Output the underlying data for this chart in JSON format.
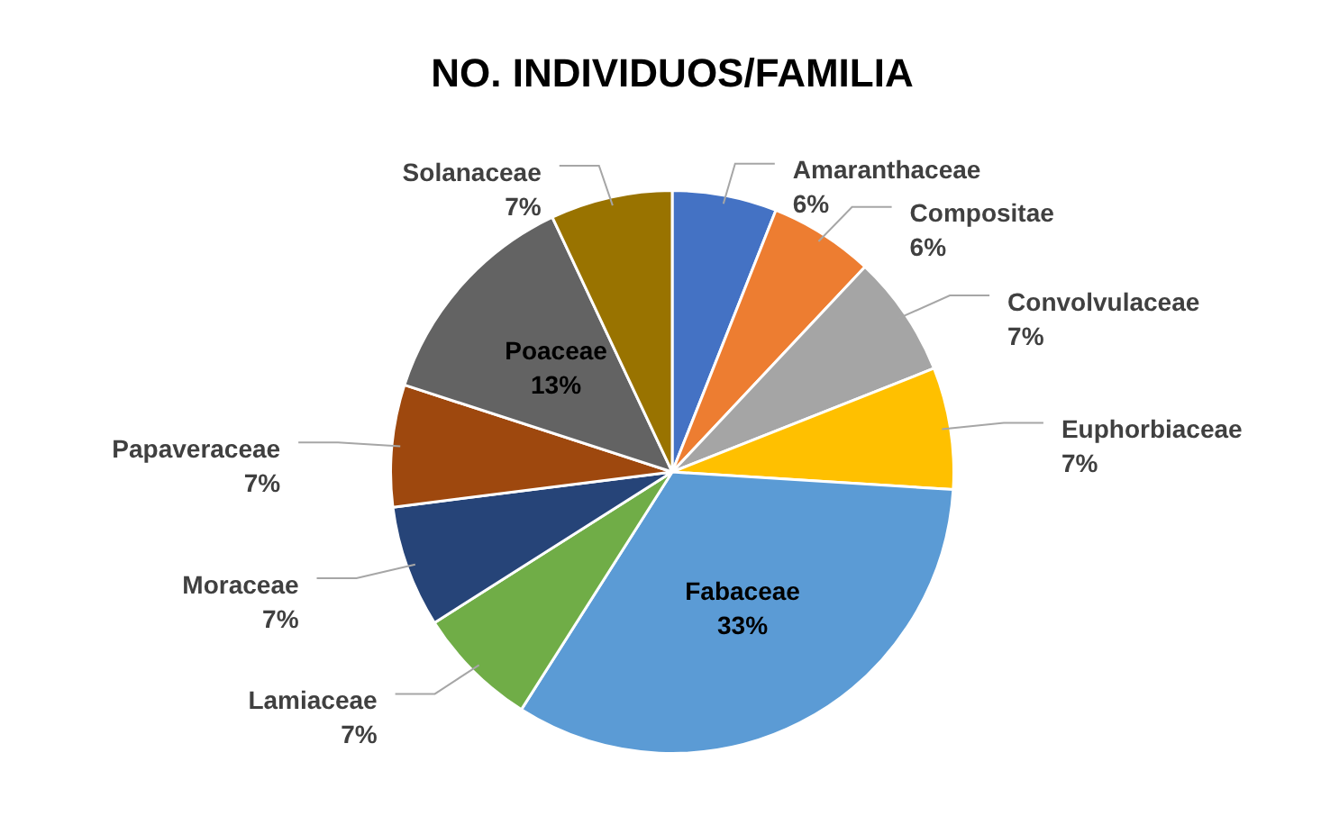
{
  "chart_data": {
    "type": "pie",
    "title": "NO. INDIVIDUOS/FAMILIA",
    "categories": [
      "Amaranthaceae",
      "Compositae",
      "Convolvulaceae",
      "Euphorbiaceae",
      "Fabaceae",
      "Lamiaceae",
      "Moraceae",
      "Papaveraceae",
      "Poaceae",
      "Solanaceae"
    ],
    "values": [
      6,
      6,
      7,
      7,
      33,
      7,
      7,
      7,
      13,
      7
    ],
    "value_labels": [
      "6%",
      "6%",
      "7%",
      "7%",
      "33%",
      "7%",
      "7%",
      "7%",
      "13%",
      "7%"
    ],
    "colors": [
      "#4472c4",
      "#ed7d31",
      "#a5a5a5",
      "#ffc000",
      "#5b9bd5",
      "#70ad47",
      "#264478",
      "#9e480e",
      "#636363",
      "#997300"
    ],
    "legend": false
  }
}
